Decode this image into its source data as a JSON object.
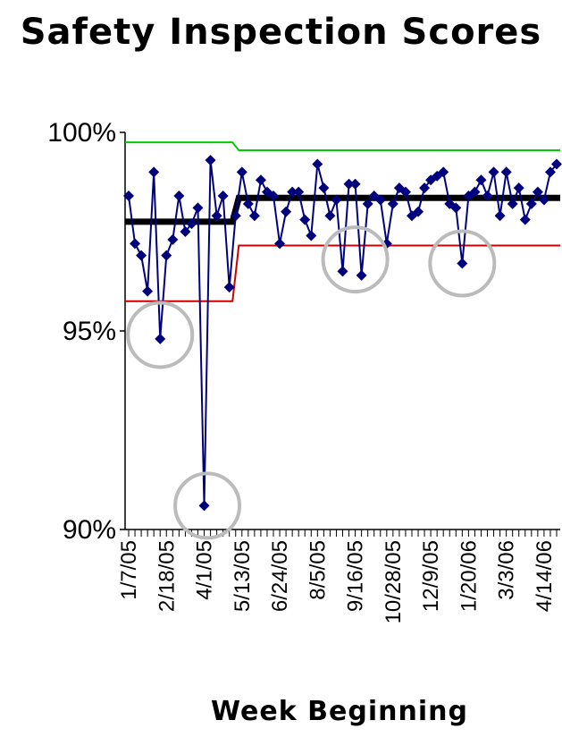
{
  "chart_data": {
    "type": "line",
    "title": "Safety Inspection Scores",
    "xlabel": "Week Beginning",
    "ylabel": "",
    "ylim": [
      0.9,
      1.0
    ],
    "y_ticks": [
      "90%",
      "95%",
      "100%"
    ],
    "x_tick_labels": [
      "1/7/05",
      "2/18/05",
      "4/1/05",
      "5/13/05",
      "6/24/05",
      "8/5/05",
      "9/16/05",
      "10/28/05",
      "12/9/05",
      "1/20/06",
      "3/3/06",
      "4/14/06"
    ],
    "n_weeks": 69,
    "series": [
      {
        "color": "#00007f",
        "marker": "diamond",
        "values": [
          98.4,
          97.2,
          96.9,
          96.0,
          99.0,
          94.8,
          96.9,
          97.3,
          98.4,
          97.5,
          97.7,
          98.1,
          90.6,
          99.3,
          97.9,
          98.4,
          96.1,
          97.9,
          99.0,
          98.2,
          97.9,
          98.8,
          98.5,
          98.4,
          97.2,
          98.0,
          98.5,
          98.5,
          97.8,
          97.4,
          99.2,
          98.6,
          97.9,
          98.3,
          96.5,
          98.7,
          98.7,
          96.4,
          98.2,
          98.4,
          98.3,
          97.2,
          98.2,
          98.6,
          98.5,
          97.9,
          98.0,
          98.6,
          98.8,
          98.9,
          99.0,
          98.2,
          98.1,
          96.7,
          98.4,
          98.5,
          98.8,
          98.4,
          99.0,
          97.9,
          99.0,
          98.2,
          98.6,
          97.8,
          98.2,
          98.5,
          98.3,
          99.0,
          99.2
        ]
      },
      {
        "color": "#000000",
        "segments": [
          {
            "from_week": 0,
            "to_week": 16.5,
            "value": 97.75
          },
          {
            "from_week": 17.5,
            "to_week": 68.5,
            "value": 98.35
          }
        ]
      },
      {
        "color": "#00cc00",
        "segments": [
          {
            "from_week": 0,
            "to_week": 16.5,
            "value": 99.75
          },
          {
            "from_week": 17.5,
            "to_week": 68.5,
            "value": 99.55
          }
        ]
      },
      {
        "color": "#cc0000",
        "segments": [
          {
            "from_week": 0,
            "to_week": 16.5,
            "value": 95.75
          },
          {
            "from_week": 17.5,
            "to_week": 68.5,
            "value": 97.15
          }
        ]
      }
    ],
    "annotations": [
      {
        "shape": "circle",
        "color": "#bbbbbb",
        "center_week": 5,
        "center_value": 94.9
      },
      {
        "shape": "circle",
        "color": "#bbbbbb",
        "center_week": 12.5,
        "center_value": 90.6
      },
      {
        "shape": "circle",
        "color": "#bbbbbb",
        "center_week": 36,
        "center_value": 96.8
      },
      {
        "shape": "circle",
        "color": "#bbbbbb",
        "center_week": 53,
        "center_value": 96.7
      }
    ]
  }
}
